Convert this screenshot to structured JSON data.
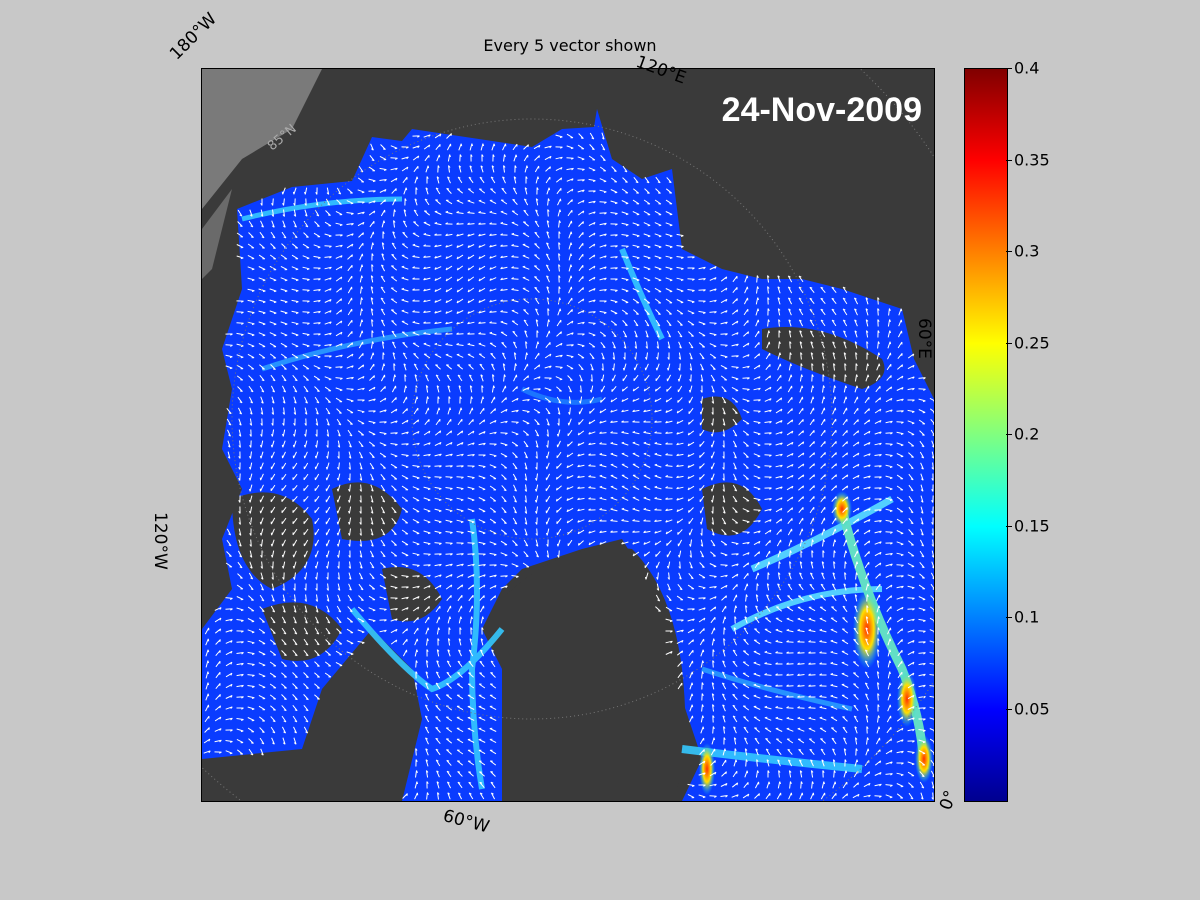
{
  "title": "Every 5 vector shown",
  "date": "24-Nov-2009",
  "geo_labels": {
    "lon_180w": "180°W",
    "lon_120e": "120°E",
    "lon_60e": "60°E",
    "lon_120w": "120°W",
    "lon_60w": "60°W",
    "lon_0": "0°",
    "lat_85n": "85°N"
  },
  "colorbar": {
    "colormap": "jet",
    "range": [
      0,
      0.4
    ],
    "ticks": [
      "0.4",
      "0.35",
      "0.3",
      "0.25",
      "0.2",
      "0.15",
      "0.1",
      "0.05"
    ],
    "tick_values": [
      0.4,
      0.35,
      0.3,
      0.25,
      0.2,
      0.15,
      0.1,
      0.05
    ]
  },
  "colors": {
    "background": "#c8c8c8",
    "land": "#3a3a3a",
    "open_water": "#7a7a7a",
    "ice_low": "#0a3cff",
    "vector": "#ffffff"
  }
}
